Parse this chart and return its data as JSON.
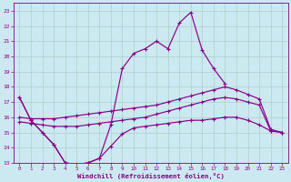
{
  "xlabel": "Windchill (Refroidissement éolien,°C)",
  "xlim": [
    -0.5,
    23.5
  ],
  "ylim": [
    13,
    23.5
  ],
  "yticks": [
    13,
    14,
    15,
    16,
    17,
    18,
    19,
    20,
    21,
    22,
    23
  ],
  "xticks": [
    0,
    1,
    2,
    3,
    4,
    5,
    6,
    7,
    8,
    9,
    10,
    11,
    12,
    13,
    14,
    15,
    16,
    17,
    18,
    19,
    20,
    21,
    22,
    23
  ],
  "background_color": "#cce8f0",
  "grid_color": "#b0d4d0",
  "line_color": "#880088",
  "series": {
    "curve_spike": {
      "x": [
        0,
        1,
        2,
        3,
        4,
        5,
        6,
        7,
        8,
        9,
        10,
        11,
        12,
        13,
        14,
        15,
        16,
        17,
        18
      ],
      "y": [
        17.3,
        15.8,
        15.0,
        14.2,
        13.0,
        12.9,
        13.0,
        13.3,
        15.5,
        19.2,
        20.2,
        20.5,
        21.0,
        20.5,
        22.2,
        22.9,
        20.4,
        19.2,
        18.2
      ]
    },
    "curve_flat": {
      "x": [
        0,
        1,
        2,
        3,
        4,
        5,
        6,
        7,
        8,
        9,
        10,
        11,
        12,
        13,
        14,
        15,
        16,
        17,
        18,
        19,
        20,
        21,
        22,
        23
      ],
      "y": [
        17.3,
        15.8,
        15.0,
        14.2,
        13.0,
        12.9,
        13.0,
        13.3,
        14.1,
        14.9,
        15.3,
        15.4,
        15.5,
        15.6,
        15.7,
        15.8,
        15.8,
        15.9,
        16.0,
        16.0,
        15.8,
        15.5,
        15.1,
        15.0
      ]
    },
    "line_upper": {
      "x": [
        0,
        1,
        2,
        3,
        4,
        5,
        6,
        7,
        8,
        9,
        10,
        11,
        12,
        13,
        14,
        15,
        16,
        17,
        18,
        19,
        20,
        21,
        22,
        23
      ],
      "y": [
        16.0,
        15.9,
        15.9,
        15.9,
        16.0,
        16.1,
        16.2,
        16.3,
        16.4,
        16.5,
        16.6,
        16.7,
        16.8,
        17.0,
        17.2,
        17.4,
        17.6,
        17.8,
        18.0,
        17.8,
        17.5,
        17.2,
        15.2,
        15.0
      ]
    },
    "line_lower": {
      "x": [
        0,
        1,
        2,
        3,
        4,
        5,
        6,
        7,
        8,
        9,
        10,
        11,
        12,
        13,
        14,
        15,
        16,
        17,
        18,
        19,
        20,
        21,
        22,
        23
      ],
      "y": [
        15.7,
        15.6,
        15.5,
        15.4,
        15.4,
        15.4,
        15.5,
        15.6,
        15.7,
        15.8,
        15.9,
        16.0,
        16.2,
        16.4,
        16.6,
        16.8,
        17.0,
        17.2,
        17.3,
        17.2,
        17.0,
        16.8,
        15.1,
        15.0
      ]
    }
  }
}
